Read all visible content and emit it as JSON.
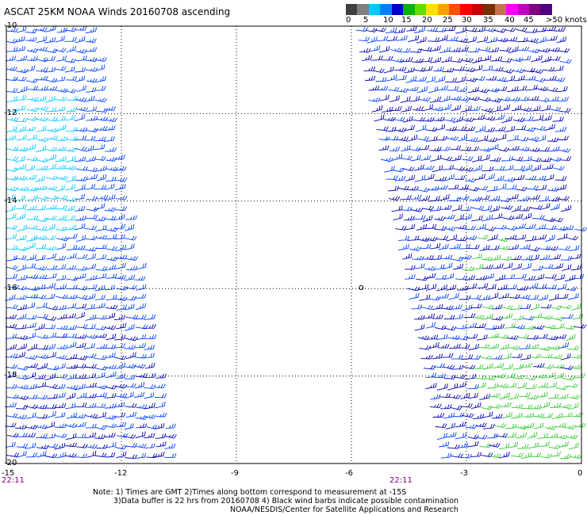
{
  "title": "ASCAT 25KM NOAA Winds 20160708 ascending",
  "legend": {
    "labels": [
      "0",
      "5",
      "10",
      "15",
      "20",
      "25",
      "30",
      "35",
      "40",
      "45"
    ],
    "unit_label": ">50 knots",
    "colors": [
      "#404040",
      "#808080",
      "#00c8ff",
      "#0080ff",
      "#0000c8",
      "#00b400",
      "#64dc00",
      "#ffe000",
      "#ffa000",
      "#ff5000",
      "#ff0000",
      "#c80000",
      "#783000",
      "#c87050",
      "#ff00ff",
      "#c000c0",
      "#800080",
      "#500080"
    ]
  },
  "axes": {
    "y_labels": [
      "-10",
      "-12",
      "-14",
      "-16",
      "-18",
      "-20"
    ],
    "x_labels": [
      "-15",
      "-12",
      "-9",
      "-6",
      "-3",
      "0"
    ],
    "x_range": [
      -15,
      0
    ],
    "y_range": [
      -20,
      -10
    ]
  },
  "time_labels": [
    "22:11",
    "22:11"
  ],
  "notes": [
    "Note: 1) Times are GMT 2)Times along bottom correspond to measurement at -15S",
    "3)Data buffer is 22 hrs from 20160708 4) Black wind barbs indicate possible contamination",
    "NOAA/NESDIS/Center for Satellite Applications and Research"
  ],
  "marker": "o",
  "barb_colors": {
    "cyan": "#00c8ff",
    "blue": "#0040ff",
    "navy": "#0000b4",
    "green": "#32c832"
  }
}
